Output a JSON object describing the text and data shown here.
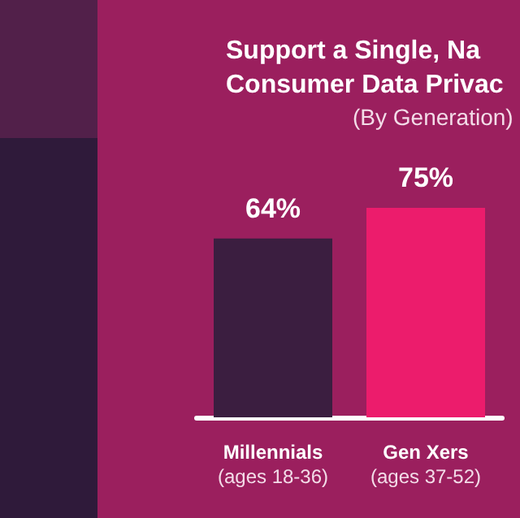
{
  "chart_data": {
    "type": "bar",
    "title": "Support a Single, Na\nConsumer Data Privac",
    "subtitle": "(By Generation)",
    "categories": [
      "Millennials\n(ages 18-36)",
      "Gen Xers\n(ages 37-52)"
    ],
    "values": [
      64,
      75
    ],
    "colors": [
      "#3b1e40",
      "#ec1c6c"
    ],
    "value_labels": [
      "64%",
      "75%"
    ],
    "ylim": [
      0,
      75
    ],
    "tick_labels": "x"
  }
}
